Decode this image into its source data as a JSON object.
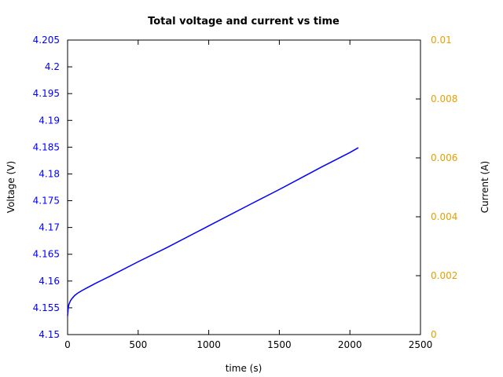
{
  "chart_data": {
    "type": "line",
    "title": "Total voltage and current vs time",
    "xlabel": "time (s)",
    "ylabel_left": "Voltage (V)",
    "ylabel_right": "Current (A)",
    "xlim": [
      0,
      2500
    ],
    "ylim_left": [
      4.15,
      4.205
    ],
    "ylim_right": [
      0,
      0.01
    ],
    "x_ticks": [
      "0",
      "500",
      "1000",
      "1500",
      "2000",
      "2500"
    ],
    "y_left_ticks": [
      "4.15",
      "4.155",
      "4.16",
      "4.165",
      "4.17",
      "4.175",
      "4.18",
      "4.185",
      "4.19",
      "4.195",
      "4.2",
      "4.205"
    ],
    "y_right_ticks": [
      "0",
      "0.002",
      "0.004",
      "0.006",
      "0.008",
      "0.01"
    ],
    "grid": false,
    "colors": {
      "left_axis": "#0000ff",
      "right_axis": "#e5a000",
      "voltage_line": "#0000ff",
      "frame": "#000000"
    },
    "series": [
      {
        "axis": "left",
        "x": [
          0,
          5,
          10,
          20,
          30,
          50,
          75,
          100,
          150,
          200,
          300,
          500,
          700,
          1000,
          1300,
          1500,
          1800,
          2000,
          2060
        ],
        "y": [
          4.1535,
          4.1551,
          4.1557,
          4.1563,
          4.1567,
          4.1573,
          4.1578,
          4.1582,
          4.1589,
          4.1596,
          4.1609,
          4.1636,
          4.1662,
          4.1703,
          4.1744,
          4.1771,
          4.1813,
          4.184,
          4.1849
        ]
      }
    ]
  }
}
